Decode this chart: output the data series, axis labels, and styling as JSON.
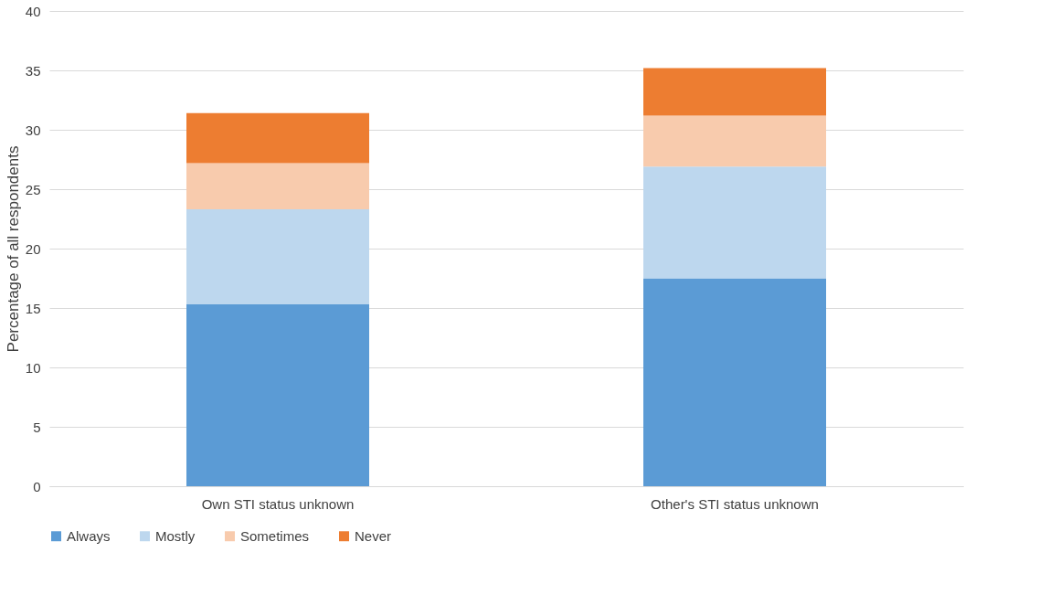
{
  "chart_data": {
    "type": "bar",
    "stacked": true,
    "ylabel": "Percentage of all respondents",
    "categories": [
      "Own STI status unknown",
      "Other's STI status unknown"
    ],
    "series": [
      {
        "name": "Always",
        "color": "#5b9bd5",
        "values": [
          15.3,
          17.5
        ]
      },
      {
        "name": "Mostly",
        "color": "#bdd7ee",
        "values": [
          8.0,
          9.4
        ]
      },
      {
        "name": "Sometimes",
        "color": "#f8cbad",
        "values": [
          3.9,
          4.3
        ]
      },
      {
        "name": "Never",
        "color": "#ed7d31",
        "values": [
          4.2,
          4.0
        ]
      }
    ],
    "ylim": [
      0,
      40
    ],
    "yticks": [
      0,
      5,
      10,
      15,
      20,
      25,
      30,
      35,
      40
    ],
    "grid": "y",
    "legend": "bottom"
  }
}
